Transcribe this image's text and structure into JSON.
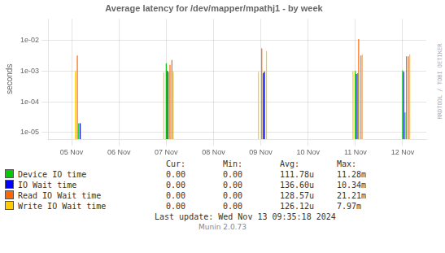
{
  "chart_data": {
    "type": "spike",
    "title": "Average latency for /dev/mapper/mpathj1 - by week",
    "y_label": "seconds",
    "log": "y",
    "grid": true,
    "legend": "bottom",
    "xlim": [
      -0.5,
      7.5
    ],
    "xticks": [
      {
        "value": 0,
        "label": "05 Nov"
      },
      {
        "value": 1,
        "label": "06 Nov"
      },
      {
        "value": 2,
        "label": "07 Nov"
      },
      {
        "value": 3,
        "label": "08 Nov"
      },
      {
        "value": 4,
        "label": "09 Nov"
      },
      {
        "value": 5,
        "label": "10 Nov"
      },
      {
        "value": 6,
        "label": "11 Nov"
      },
      {
        "value": 7,
        "label": "12 Nov"
      }
    ],
    "ylim": [
      6e-06,
      0.05
    ],
    "yticks": [
      {
        "value": 1e-05,
        "label": "1e-05"
      },
      {
        "value": 0.0001,
        "label": "1e-04"
      },
      {
        "value": 0.001,
        "label": "1e-03"
      },
      {
        "value": 0.01,
        "label": "1e-02"
      }
    ],
    "series": [
      {
        "name": "Device IO time",
        "color": "#00cc00",
        "spikes": [
          {
            "x": 0.15,
            "low": 6e-06,
            "high": 2e-05
          },
          {
            "x": 2.0,
            "low": 6e-06,
            "high": 0.0018
          },
          {
            "x": 2.05,
            "low": 6e-06,
            "high": 0.00095
          },
          {
            "x": 4.05,
            "low": 6e-06,
            "high": 0.00085
          },
          {
            "x": 6.0,
            "low": 6e-06,
            "high": 0.001
          },
          {
            "x": 6.05,
            "low": 6e-06,
            "high": 0.00085
          },
          {
            "x": 7.0,
            "low": 6e-06,
            "high": 0.00105
          },
          {
            "x": 7.05,
            "low": 6e-06,
            "high": 4.5e-05
          }
        ]
      },
      {
        "name": "IO Wait time",
        "color": "#0000ff",
        "spikes": [
          {
            "x": 0.18,
            "low": 6e-06,
            "high": 2e-05
          },
          {
            "x": 2.02,
            "low": 6e-06,
            "high": 0.001
          },
          {
            "x": 4.07,
            "low": 6e-06,
            "high": 0.0009
          },
          {
            "x": 6.02,
            "low": 6e-06,
            "high": 0.0008
          },
          {
            "x": 7.02,
            "low": 6e-06,
            "high": 0.00095
          }
        ]
      },
      {
        "name": "Read IO Wait time",
        "color": "#ff6600",
        "spikes": [
          {
            "x": 0.12,
            "low": 6e-06,
            "high": 0.0032
          },
          {
            "x": 2.08,
            "low": 6e-06,
            "high": 0.0016
          },
          {
            "x": 2.12,
            "low": 6e-06,
            "high": 0.0023
          },
          {
            "x": 4.02,
            "low": 6e-06,
            "high": 0.0055
          },
          {
            "x": 4.08,
            "low": 6e-06,
            "high": 0.001
          },
          {
            "x": 6.07,
            "low": 6e-06,
            "high": 0.011
          },
          {
            "x": 6.12,
            "low": 6e-06,
            "high": 0.0032
          },
          {
            "x": 7.08,
            "low": 6e-06,
            "high": 0.003
          },
          {
            "x": 7.12,
            "low": 6e-06,
            "high": 0.003
          }
        ]
      },
      {
        "name": "Write IO Wait time",
        "color": "#ffcc00",
        "spikes": [
          {
            "x": 0.08,
            "low": 6e-06,
            "high": 0.001
          },
          {
            "x": 1.95,
            "low": 6e-06,
            "high": 0.0009
          },
          {
            "x": 2.15,
            "low": 6e-06,
            "high": 0.00095
          },
          {
            "x": 3.95,
            "low": 6e-06,
            "high": 0.00095
          },
          {
            "x": 4.12,
            "low": 6e-06,
            "high": 0.0045
          },
          {
            "x": 5.95,
            "low": 6e-06,
            "high": 0.001
          },
          {
            "x": 6.15,
            "low": 6e-06,
            "high": 0.0035
          },
          {
            "x": 7.15,
            "low": 6e-06,
            "high": 0.0035
          }
        ]
      }
    ],
    "table": {
      "headers": [
        "Cur:",
        "Min:",
        "Avg:",
        "Max:"
      ],
      "rows": [
        [
          "0.00",
          "0.00",
          "111.78u",
          "11.28m"
        ],
        [
          "0.00",
          "0.00",
          "136.60u",
          "10.34m"
        ],
        [
          "0.00",
          "0.00",
          "128.57u",
          "21.21m"
        ],
        [
          "0.00",
          "0.00",
          "126.12u",
          "7.97m"
        ]
      ]
    },
    "annotations": [
      "RRDTOOL / TOBI OETIKER",
      "Last update: Wed Nov 13 09:35:18 2024",
      "Munin 2.0.73"
    ]
  }
}
